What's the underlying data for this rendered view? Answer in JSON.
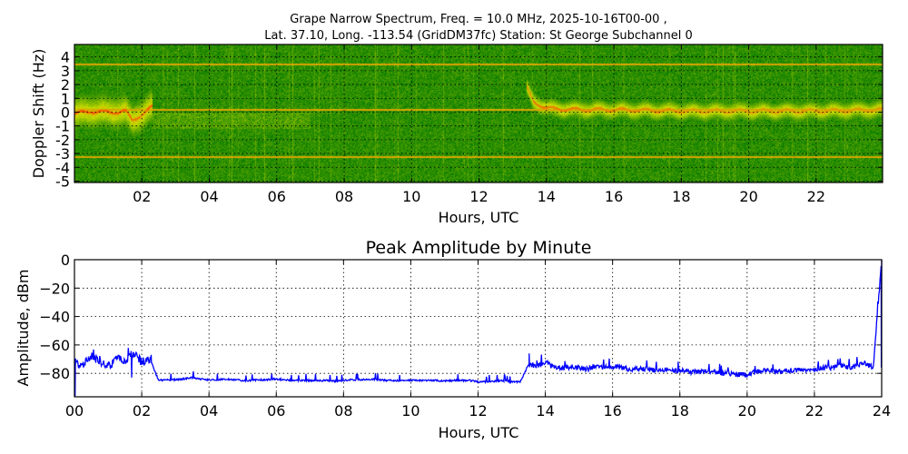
{
  "chart_data": [
    {
      "type": "heatmap",
      "title_line1": "Grape Narrow Spectrum, Freq. = 10.0 MHz, 2025-10-16T00-00 ,",
      "title_line2": "Lat.  37.10, Long. -113.54 (GridDM37fc) Station: St George Subchannel 0",
      "xlabel": "Hours, UTC",
      "ylabel": "Doppler Shift (Hz)",
      "xlim": [
        0,
        23.97
      ],
      "ylim": [
        -5.1,
        4.9
      ],
      "xticks": [
        2,
        4,
        6,
        8,
        10,
        12,
        14,
        16,
        18,
        20,
        22
      ],
      "xtick_labels": [
        "02",
        "04",
        "06",
        "08",
        "10",
        "12",
        "14",
        "16",
        "18",
        "20",
        "22"
      ],
      "yticks": [
        4,
        3,
        2,
        1,
        0,
        -1,
        -2,
        -3,
        -4,
        -5
      ],
      "ytick_labels": [
        "4",
        "3",
        "2",
        "1",
        "0",
        "-1",
        "-2",
        "-3",
        "-4",
        "-5"
      ],
      "grid": true,
      "colormap": {
        "low": "#007800",
        "mid": "#e6e600",
        "high": "#ff2a00"
      },
      "constant_lines_hz": [
        3.5,
        0.2,
        -3.2
      ],
      "carrier_trace": {
        "hours": [
          0,
          0.5,
          1.0,
          1.5,
          1.7,
          2.0,
          2.3,
          13.4,
          13.6,
          14.0,
          15.0,
          16.0,
          18.0,
          20.0,
          22.0,
          23.97
        ],
        "doppler": [
          -0.1,
          0.1,
          0.0,
          0.1,
          -0.6,
          -0.1,
          0.4,
          1.8,
          0.8,
          0.3,
          0.2,
          0.2,
          0.1,
          0.1,
          0.1,
          0.2
        ],
        "intensity": [
          0.9,
          0.9,
          0.9,
          0.9,
          0.8,
          0.9,
          0.9,
          0.8,
          0.8,
          0.8,
          0.75,
          0.75,
          0.7,
          0.7,
          0.7,
          0.75
        ]
      }
    },
    {
      "type": "line",
      "title": "Peak Amplitude by Minute",
      "xlabel": "Hours, UTC",
      "ylabel": "Amplitude, dBm",
      "xlim": [
        0,
        24
      ],
      "ylim": [
        -96.5,
        0
      ],
      "xticks": [
        0,
        2,
        4,
        6,
        8,
        10,
        12,
        14,
        16,
        18,
        20,
        22,
        24
      ],
      "xtick_labels": [
        "00",
        "02",
        "04",
        "06",
        "08",
        "10",
        "12",
        "14",
        "16",
        "18",
        "20",
        "22",
        "24"
      ],
      "yticks": [
        0,
        -20,
        -40,
        -60,
        -80
      ],
      "ytick_labels": [
        "0",
        "−20",
        "−40",
        "−60",
        "−80"
      ],
      "grid": true,
      "color": "#0000ff",
      "series": [
        {
          "name": "Peak Amplitude",
          "x_step_hours": 0.25,
          "values": [
            -72,
            -74,
            -68,
            -72,
            -75,
            -70,
            -71,
            -66,
            -72,
            -70,
            -85,
            -84.5,
            -84.5,
            -84,
            -83,
            -84,
            -84.5,
            -84.5,
            -84,
            -84.5,
            -85,
            -85,
            -84.5,
            -84.5,
            -84,
            -84.5,
            -85,
            -85,
            -85,
            -85,
            -85,
            -85.5,
            -85,
            -84.5,
            -84.5,
            -84,
            -84.5,
            -85,
            -85,
            -85,
            -85,
            -85,
            -85,
            -85,
            -85.5,
            -85,
            -85,
            -85,
            -86,
            -86,
            -85.5,
            -85,
            -86,
            -86,
            -74,
            -75,
            -72,
            -76,
            -76,
            -76,
            -76,
            -77,
            -75,
            -76,
            -75,
            -76,
            -77,
            -77,
            -77,
            -78,
            -77,
            -78,
            -78,
            -79,
            -79,
            -79,
            -79,
            -80,
            -80,
            -81,
            -81,
            -79,
            -78,
            -78,
            -79,
            -78,
            -78,
            -78,
            -77,
            -76,
            -76,
            -74,
            -76,
            -75,
            -73,
            -76,
            0
          ]
        }
      ],
      "spikes": [
        {
          "hour": 0.02,
          "value": -96
        },
        {
          "hour": 1.7,
          "value": -83
        },
        {
          "hour": 1.75,
          "value": -65
        },
        {
          "hour": 2.28,
          "value": -67
        },
        {
          "hour": 13.52,
          "value": -66
        },
        {
          "hour": 22.7,
          "value": -70
        }
      ]
    }
  ]
}
